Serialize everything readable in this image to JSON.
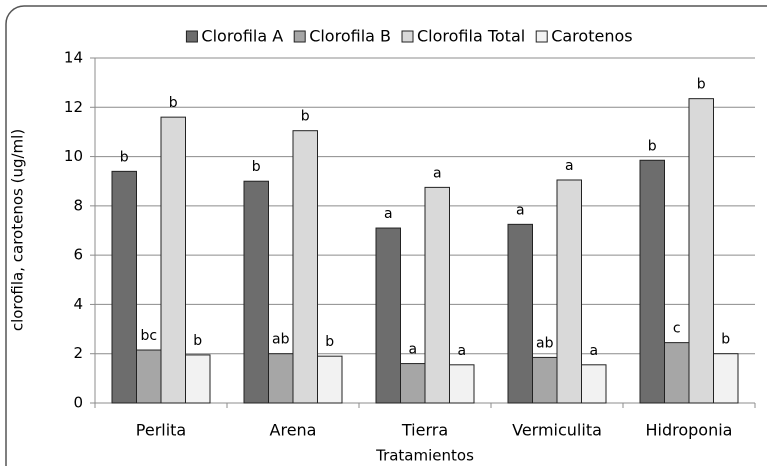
{
  "chart_data": {
    "type": "bar",
    "categories": [
      "Perlita",
      "Arena",
      "Tierra",
      "Vermiculita",
      "Hidroponia"
    ],
    "series": [
      {
        "name": "Clorofila A",
        "color": "#6d6d6d",
        "values": [
          9.4,
          9.0,
          7.1,
          7.25,
          9.85
        ],
        "letters": [
          "b",
          "b",
          "a",
          "a",
          "b"
        ]
      },
      {
        "name": "Clorofila B",
        "color": "#a6a6a6",
        "values": [
          2.15,
          2.0,
          1.6,
          1.85,
          2.45
        ],
        "letters": [
          "bc",
          "ab",
          "a",
          "ab",
          "c"
        ]
      },
      {
        "name": "Clorofila Total",
        "color": "#d9d9d9",
        "values": [
          11.6,
          11.05,
          8.75,
          9.05,
          12.35
        ],
        "letters": [
          "b",
          "b",
          "a",
          "a",
          "b"
        ]
      },
      {
        "name": "Carotenos",
        "color": "#f2f2f2",
        "values": [
          1.95,
          1.9,
          1.55,
          1.55,
          2.0
        ],
        "letters": [
          "b",
          "b",
          "a",
          "a",
          "b"
        ]
      }
    ],
    "ylabel": "clorofila, carotenos (ug/ml)",
    "xlabel": "Tratamientos",
    "ylim": [
      0,
      14
    ],
    "yticks": [
      0,
      2,
      4,
      6,
      8,
      10,
      12,
      14
    ],
    "grid": true,
    "legend": "top"
  }
}
